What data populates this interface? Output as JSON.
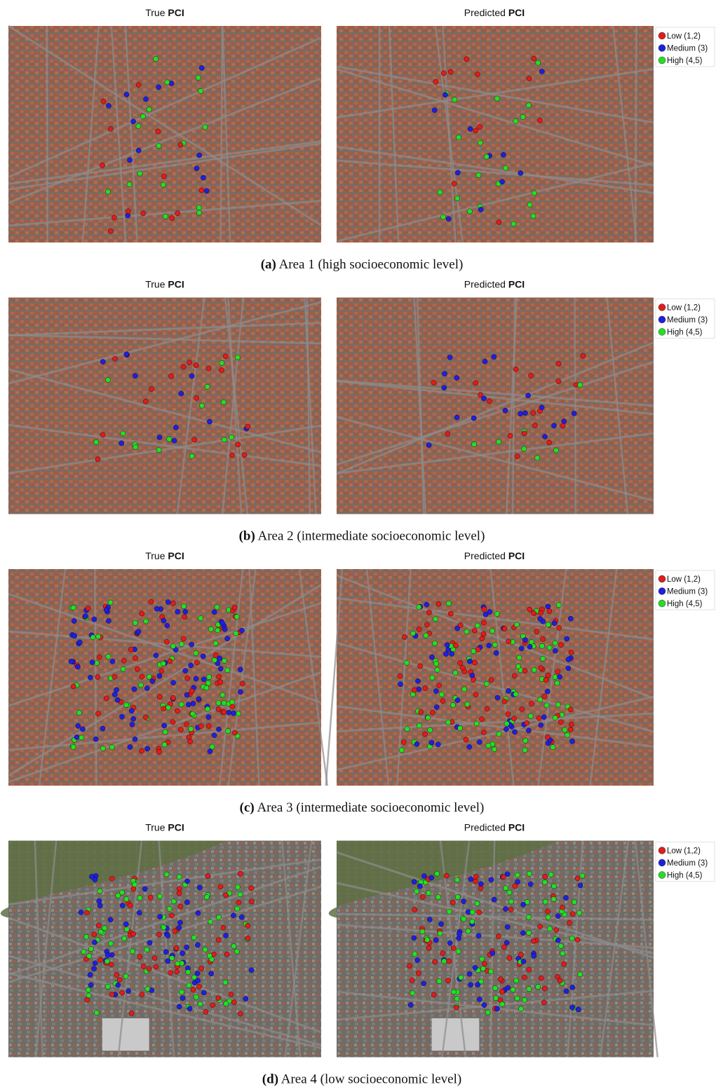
{
  "figure": {
    "rows": [
      {
        "true_title": {
          "text": "True",
          "bold": "PCI"
        },
        "pred_title": {
          "text": "Predicted",
          "bold": "PCI"
        },
        "legend": [
          "Low (1,2)",
          "Medium (3)",
          "High (4,5)"
        ],
        "caption": {
          "label": "(a)",
          "text": "Area 1 (high socioeconomic level)"
        }
      },
      {
        "true_title": {
          "text": "True",
          "bold": "PCI"
        },
        "pred_title": {
          "text": "Predicted",
          "bold": "PCI"
        },
        "legend": [
          "Low (1,2)",
          "Medium (3)",
          "High (4,5)"
        ],
        "caption": {
          "label": "(b)",
          "text": "Area 2 (intermediate socioeconomic level)"
        }
      },
      {
        "true_title": {
          "text": "True",
          "bold": "PCI"
        },
        "pred_title": {
          "text": "Predicted",
          "bold": "PCI"
        },
        "legend": [
          "Low (1,2)",
          "Medium (3)",
          "High (4,5)"
        ],
        "caption": {
          "label": "(c)",
          "text": "Area 3 (intermediate socioeconomic level)"
        }
      },
      {
        "true_title": {
          "text": "True",
          "bold": "PCI"
        },
        "pred_title": {
          "text": "Predicted",
          "bold": "PCI"
        },
        "legend": [
          "Low (1,2)",
          "Medium (3)",
          "High (4,5)"
        ],
        "caption": {
          "label": "(d)",
          "text": "Area 4 (low socioeconomic level)"
        }
      }
    ]
  }
}
